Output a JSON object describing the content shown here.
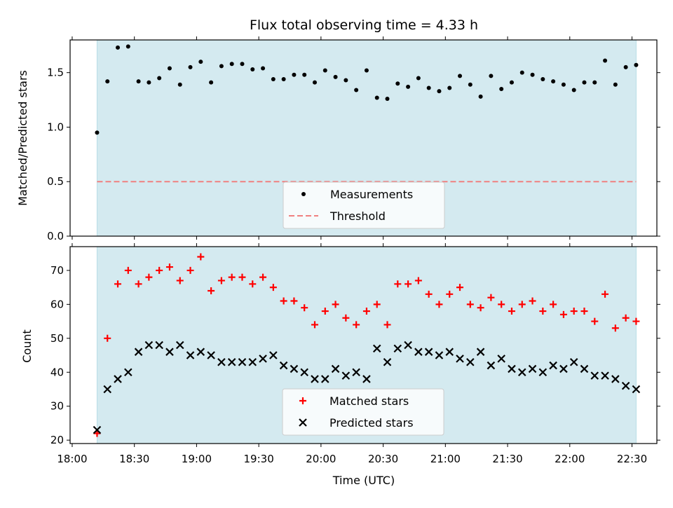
{
  "chart_data": [
    {
      "type": "scatter",
      "title": "Flux total observing time = 4.33 h",
      "xlabel": "",
      "ylabel": "Matched/Predicted stars",
      "xlim": [
        "17:59",
        "22:42"
      ],
      "ylim": [
        0,
        1.8
      ],
      "yticks": [
        "0.0",
        "0.5",
        "1.0",
        "1.5"
      ],
      "shaded_interval": {
        "start": "18:12",
        "end": "22:32",
        "color": "#d4eaf0"
      },
      "legend_position": "lower center",
      "series": [
        {
          "name": "Measurements",
          "marker": "dot",
          "color": "#000000",
          "x": [
            "18:12",
            "18:17",
            "18:22",
            "18:27",
            "18:32",
            "18:37",
            "18:42",
            "18:47",
            "18:52",
            "18:57",
            "19:02",
            "19:07",
            "19:12",
            "19:17",
            "19:22",
            "19:27",
            "19:32",
            "19:37",
            "19:42",
            "19:47",
            "19:52",
            "19:57",
            "20:02",
            "20:07",
            "20:12",
            "20:17",
            "20:22",
            "20:27",
            "20:32",
            "20:37",
            "20:42",
            "20:47",
            "20:52",
            "20:57",
            "21:02",
            "21:07",
            "21:12",
            "21:17",
            "21:22",
            "21:27",
            "21:32",
            "21:37",
            "21:42",
            "21:47",
            "21:52",
            "21:57",
            "22:02",
            "22:07",
            "22:12",
            "22:17",
            "22:22",
            "22:27",
            "22:32"
          ],
          "values": [
            0.95,
            1.42,
            1.73,
            1.74,
            1.42,
            1.41,
            1.45,
            1.54,
            1.39,
            1.55,
            1.6,
            1.41,
            1.56,
            1.58,
            1.58,
            1.53,
            1.54,
            1.44,
            1.44,
            1.48,
            1.48,
            1.41,
            1.52,
            1.46,
            1.43,
            1.34,
            1.52,
            1.27,
            1.26,
            1.4,
            1.37,
            1.45,
            1.36,
            1.33,
            1.36,
            1.47,
            1.39,
            1.28,
            1.47,
            1.35,
            1.41,
            1.5,
            1.48,
            1.44,
            1.42,
            1.39,
            1.34,
            1.41,
            1.41,
            1.61,
            1.39,
            1.55,
            1.57
          ]
        },
        {
          "name": "Threshold",
          "type": "line",
          "style": "dashed",
          "color": "#f08080",
          "x": [
            "18:12",
            "22:32"
          ],
          "values": [
            0.5,
            0.5
          ]
        }
      ]
    },
    {
      "type": "scatter",
      "title": "",
      "xlabel": "Time (UTC)",
      "ylabel": "Count",
      "xlim": [
        "17:59",
        "22:42"
      ],
      "ylim": [
        19,
        77
      ],
      "xticks": [
        "18:00",
        "18:30",
        "19:00",
        "19:30",
        "20:00",
        "20:30",
        "21:00",
        "21:30",
        "22:00",
        "22:30"
      ],
      "yticks": [
        "20",
        "30",
        "40",
        "50",
        "60",
        "70"
      ],
      "shaded_interval": {
        "start": "18:12",
        "end": "22:32",
        "color": "#d4eaf0"
      },
      "legend_position": "lower center",
      "series": [
        {
          "name": "Matched stars",
          "marker": "plus",
          "color": "#ff0000",
          "x": [
            "18:12",
            "18:17",
            "18:22",
            "18:27",
            "18:32",
            "18:37",
            "18:42",
            "18:47",
            "18:52",
            "18:57",
            "19:02",
            "19:07",
            "19:12",
            "19:17",
            "19:22",
            "19:27",
            "19:32",
            "19:37",
            "19:42",
            "19:47",
            "19:52",
            "19:57",
            "20:02",
            "20:07",
            "20:12",
            "20:17",
            "20:22",
            "20:27",
            "20:32",
            "20:37",
            "20:42",
            "20:47",
            "20:52",
            "20:57",
            "21:02",
            "21:07",
            "21:12",
            "21:17",
            "21:22",
            "21:27",
            "21:32",
            "21:37",
            "21:42",
            "21:47",
            "21:52",
            "21:57",
            "22:02",
            "22:07",
            "22:12",
            "22:17",
            "22:22",
            "22:27",
            "22:32"
          ],
          "values": [
            22,
            50,
            66,
            70,
            66,
            68,
            70,
            71,
            67,
            70,
            74,
            64,
            67,
            68,
            68,
            66,
            68,
            65,
            61,
            61,
            59,
            54,
            58,
            60,
            56,
            54,
            58,
            60,
            54,
            66,
            66,
            67,
            63,
            60,
            63,
            65,
            60,
            59,
            62,
            60,
            58,
            60,
            61,
            58,
            60,
            57,
            58,
            58,
            55,
            63,
            53,
            56,
            55
          ]
        },
        {
          "name": "Predicted stars",
          "marker": "x",
          "color": "#000000",
          "x": [
            "18:12",
            "18:17",
            "18:22",
            "18:27",
            "18:32",
            "18:37",
            "18:42",
            "18:47",
            "18:52",
            "18:57",
            "19:02",
            "19:07",
            "19:12",
            "19:17",
            "19:22",
            "19:27",
            "19:32",
            "19:37",
            "19:42",
            "19:47",
            "19:52",
            "19:57",
            "20:02",
            "20:07",
            "20:12",
            "20:17",
            "20:22",
            "20:27",
            "20:32",
            "20:37",
            "20:42",
            "20:47",
            "20:52",
            "20:57",
            "21:02",
            "21:07",
            "21:12",
            "21:17",
            "21:22",
            "21:27",
            "21:32",
            "21:37",
            "21:42",
            "21:47",
            "21:52",
            "21:57",
            "22:02",
            "22:07",
            "22:12",
            "22:17",
            "22:22",
            "22:27",
            "22:32"
          ],
          "values": [
            23,
            35,
            38,
            40,
            46,
            48,
            48,
            46,
            48,
            45,
            46,
            45,
            43,
            43,
            43,
            43,
            44,
            45,
            42,
            41,
            40,
            38,
            38,
            41,
            39,
            40,
            38,
            47,
            43,
            47,
            48,
            46,
            46,
            45,
            46,
            44,
            43,
            46,
            42,
            44,
            41,
            40,
            41,
            40,
            42,
            41,
            43,
            41,
            39,
            39,
            38,
            36,
            35
          ]
        }
      ]
    }
  ]
}
